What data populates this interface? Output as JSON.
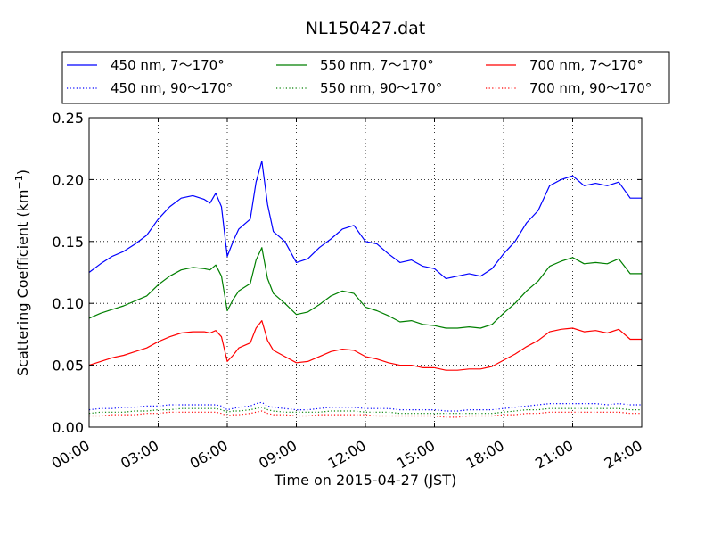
{
  "chart_data": {
    "type": "line",
    "title": "NL150427.dat",
    "xlabel": "Time on 2015-04-27 (JST)",
    "ylabel_main": "Scattering Coefficient (km",
    "ylabel_sup": "−1",
    "ylabel_close": ")",
    "xlim": [
      0,
      24
    ],
    "ylim": [
      0,
      0.25
    ],
    "grid": true,
    "legend_position": "top",
    "x_ticks": [
      {
        "value": 0,
        "label": "00:00"
      },
      {
        "value": 3,
        "label": "03:00"
      },
      {
        "value": 6,
        "label": "06:00"
      },
      {
        "value": 9,
        "label": "09:00"
      },
      {
        "value": 12,
        "label": "12:00"
      },
      {
        "value": 15,
        "label": "15:00"
      },
      {
        "value": 18,
        "label": "18:00"
      },
      {
        "value": 21,
        "label": "21:00"
      },
      {
        "value": 24,
        "label": "24:00"
      }
    ],
    "y_ticks": [
      {
        "value": 0.0,
        "label": "0.00"
      },
      {
        "value": 0.05,
        "label": "0.05"
      },
      {
        "value": 0.1,
        "label": "0.10"
      },
      {
        "value": 0.15,
        "label": "0.15"
      },
      {
        "value": 0.2,
        "label": "0.20"
      },
      {
        "value": 0.25,
        "label": "0.25"
      }
    ],
    "x": [
      0,
      0.5,
      1,
      1.5,
      2,
      2.5,
      3,
      3.5,
      4,
      4.5,
      5,
      5.25,
      5.5,
      5.75,
      6,
      6.25,
      6.5,
      7,
      7.25,
      7.5,
      7.75,
      8,
      8.5,
      9,
      9.5,
      10,
      10.5,
      11,
      11.5,
      12,
      12.5,
      13,
      13.5,
      14,
      14.5,
      15,
      15.5,
      16,
      16.5,
      17,
      17.5,
      18,
      18.5,
      19,
      19.5,
      20,
      20.5,
      21,
      21.5,
      22,
      22.5,
      23,
      23.5,
      24
    ],
    "series": [
      {
        "name": "450 nm, 7～170°",
        "color": "#0000ff",
        "style": "solid",
        "values": [
          0.125,
          0.132,
          0.138,
          0.142,
          0.148,
          0.155,
          0.168,
          0.178,
          0.185,
          0.187,
          0.184,
          0.181,
          0.189,
          0.178,
          0.138,
          0.15,
          0.16,
          0.168,
          0.198,
          0.215,
          0.18,
          0.158,
          0.15,
          0.133,
          0.136,
          0.145,
          0.152,
          0.16,
          0.163,
          0.15,
          0.148,
          0.14,
          0.133,
          0.135,
          0.13,
          0.128,
          0.12,
          0.122,
          0.124,
          0.122,
          0.128,
          0.14,
          0.15,
          0.165,
          0.175,
          0.195,
          0.2,
          0.203,
          0.195,
          0.197,
          0.195,
          0.198,
          0.185,
          0.185
        ]
      },
      {
        "name": "550 nm, 7～170°",
        "color": "#007f00",
        "style": "solid",
        "values": [
          0.088,
          0.092,
          0.095,
          0.098,
          0.102,
          0.106,
          0.115,
          0.122,
          0.127,
          0.129,
          0.128,
          0.127,
          0.131,
          0.122,
          0.094,
          0.103,
          0.11,
          0.116,
          0.135,
          0.145,
          0.12,
          0.108,
          0.1,
          0.091,
          0.093,
          0.099,
          0.106,
          0.11,
          0.108,
          0.097,
          0.094,
          0.09,
          0.085,
          0.086,
          0.083,
          0.082,
          0.08,
          0.08,
          0.081,
          0.08,
          0.083,
          0.092,
          0.1,
          0.11,
          0.118,
          0.13,
          0.134,
          0.137,
          0.132,
          0.133,
          0.132,
          0.136,
          0.124,
          0.124
        ]
      },
      {
        "name": "700 nm, 7～170°",
        "color": "#ff0000",
        "style": "solid",
        "values": [
          0.05,
          0.053,
          0.056,
          0.058,
          0.061,
          0.064,
          0.069,
          0.073,
          0.076,
          0.077,
          0.077,
          0.076,
          0.078,
          0.073,
          0.053,
          0.058,
          0.064,
          0.068,
          0.08,
          0.086,
          0.07,
          0.062,
          0.057,
          0.052,
          0.053,
          0.057,
          0.061,
          0.063,
          0.062,
          0.057,
          0.055,
          0.052,
          0.05,
          0.05,
          0.048,
          0.048,
          0.046,
          0.046,
          0.047,
          0.047,
          0.049,
          0.054,
          0.059,
          0.065,
          0.07,
          0.077,
          0.079,
          0.08,
          0.077,
          0.078,
          0.076,
          0.079,
          0.071,
          0.071
        ]
      },
      {
        "name": "450 nm, 90～170°",
        "color": "#0000ff",
        "style": "dotted",
        "values": [
          0.014,
          0.015,
          0.015,
          0.016,
          0.016,
          0.017,
          0.017,
          0.018,
          0.018,
          0.018,
          0.018,
          0.018,
          0.018,
          0.017,
          0.014,
          0.015,
          0.016,
          0.017,
          0.019,
          0.02,
          0.017,
          0.016,
          0.015,
          0.014,
          0.014,
          0.015,
          0.016,
          0.016,
          0.016,
          0.015,
          0.015,
          0.015,
          0.014,
          0.014,
          0.014,
          0.014,
          0.013,
          0.013,
          0.014,
          0.014,
          0.014,
          0.015,
          0.016,
          0.017,
          0.018,
          0.019,
          0.019,
          0.019,
          0.019,
          0.019,
          0.018,
          0.019,
          0.018,
          0.018
        ]
      },
      {
        "name": "550 nm, 90～170°",
        "color": "#007f00",
        "style": "dotted",
        "values": [
          0.011,
          0.012,
          0.012,
          0.012,
          0.013,
          0.013,
          0.014,
          0.014,
          0.015,
          0.015,
          0.015,
          0.015,
          0.015,
          0.014,
          0.012,
          0.013,
          0.013,
          0.014,
          0.015,
          0.016,
          0.014,
          0.013,
          0.012,
          0.012,
          0.012,
          0.012,
          0.013,
          0.013,
          0.013,
          0.012,
          0.012,
          0.012,
          0.011,
          0.011,
          0.011,
          0.011,
          0.011,
          0.011,
          0.011,
          0.011,
          0.011,
          0.012,
          0.013,
          0.014,
          0.014,
          0.015,
          0.015,
          0.015,
          0.015,
          0.015,
          0.015,
          0.015,
          0.014,
          0.014
        ]
      },
      {
        "name": "700 nm, 90～170°",
        "color": "#ff0000",
        "style": "dotted",
        "values": [
          0.009,
          0.009,
          0.01,
          0.01,
          0.01,
          0.011,
          0.011,
          0.012,
          0.012,
          0.012,
          0.012,
          0.012,
          0.012,
          0.011,
          0.009,
          0.01,
          0.01,
          0.011,
          0.012,
          0.013,
          0.011,
          0.01,
          0.01,
          0.009,
          0.009,
          0.01,
          0.01,
          0.01,
          0.01,
          0.01,
          0.009,
          0.009,
          0.009,
          0.009,
          0.009,
          0.009,
          0.008,
          0.008,
          0.009,
          0.009,
          0.009,
          0.01,
          0.01,
          0.011,
          0.011,
          0.012,
          0.012,
          0.012,
          0.012,
          0.012,
          0.012,
          0.012,
          0.011,
          0.011
        ]
      }
    ]
  }
}
